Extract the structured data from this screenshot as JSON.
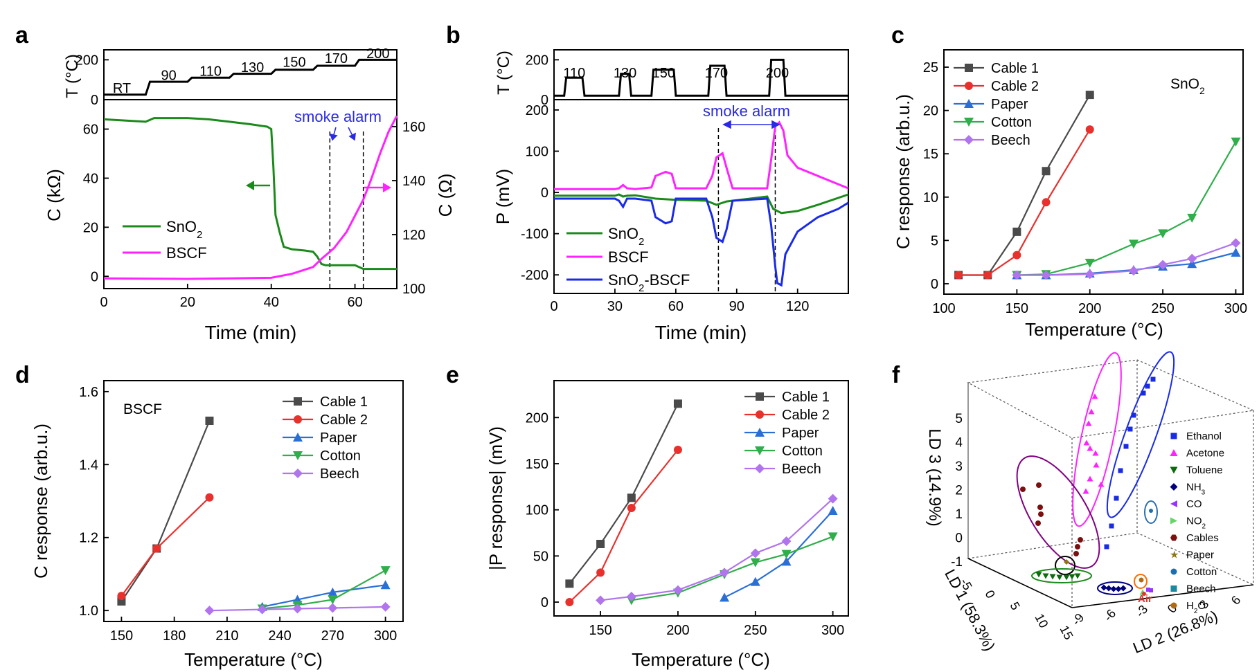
{
  "panel_letters": [
    "a",
    "b",
    "c",
    "d",
    "e",
    "f"
  ],
  "colors": {
    "green": "#1a8a1a",
    "magenta": "#ff22ff",
    "blue": "#1a2be6",
    "cable1": "#4a4a4a",
    "cable2": "#e8302c",
    "paper": "#2a6fd6",
    "cotton": "#2fae4a",
    "beech": "#b074ec",
    "annot": "#2a2ae6"
  },
  "chart_data": [
    {
      "panel": "a",
      "type": "line",
      "top": {
        "ylabel": "T (°C)",
        "yticks": [
          0,
          200
        ],
        "ylim": [
          0,
          250
        ],
        "x": [
          0,
          10,
          11,
          20,
          21,
          30,
          31,
          40,
          41,
          50,
          51,
          60,
          61,
          70
        ],
        "y": [
          25,
          25,
          90,
          90,
          110,
          110,
          130,
          130,
          150,
          150,
          170,
          170,
          200,
          200
        ],
        "step_labels": [
          "RT",
          "90",
          "110",
          "130",
          "150",
          "170",
          "200"
        ],
        "step_x": [
          4.3,
          15.5,
          25.5,
          35.5,
          45.5,
          55.5,
          65.5
        ],
        "step_y": [
          55,
          120,
          140,
          160,
          185,
          205,
          230
        ]
      },
      "xlabel": "Time (min)",
      "xlim": [
        0,
        70
      ],
      "xticks": [
        0,
        20,
        40,
        60
      ],
      "ylabel_left": "C (kΩ)",
      "ylim_left": [
        -5,
        72
      ],
      "yticks_left": [
        0,
        20,
        40,
        60
      ],
      "ylabel_right": "C (Ω)",
      "ylim_right": [
        100,
        170
      ],
      "yticks_right": [
        100,
        120,
        140,
        160
      ],
      "annotation": "smoke alarm",
      "alarm_x": [
        54,
        62
      ],
      "series": [
        {
          "name": "SnO2",
          "axis": "left",
          "x": [
            0,
            5,
            10,
            12,
            20,
            25,
            30,
            35,
            39,
            40,
            40.5,
            41,
            42,
            43,
            45,
            48,
            50,
            51,
            52,
            53,
            55,
            60,
            62,
            65,
            70
          ],
          "y": [
            64,
            63.5,
            63,
            64.5,
            64.5,
            64,
            63,
            62,
            61,
            60,
            45,
            25,
            18,
            12,
            11,
            10.5,
            10,
            8,
            5,
            4.5,
            4.5,
            4.5,
            3,
            3,
            3
          ]
        },
        {
          "name": "BSCF",
          "axis": "right",
          "x": [
            0,
            10,
            20,
            30,
            40,
            45,
            48,
            50,
            52,
            55,
            58,
            60,
            62,
            64,
            66,
            68,
            70
          ],
          "y": [
            103.8,
            103.7,
            103.6,
            103.8,
            104,
            105.5,
            107,
            108,
            111,
            115,
            121,
            127,
            133,
            141,
            150,
            158,
            164
          ]
        }
      ],
      "legend": [
        "SnO",
        "BSCF"
      ]
    },
    {
      "panel": "b",
      "type": "line",
      "top": {
        "ylabel": "T (°C)",
        "yticks": [
          0,
          200
        ],
        "ylim": [
          0,
          250
        ],
        "x": [
          0,
          5,
          6,
          14,
          15,
          32,
          33,
          37,
          38,
          48,
          49,
          59,
          60,
          76,
          77,
          84,
          85,
          106,
          107,
          113,
          114,
          145
        ],
        "y": [
          20,
          20,
          110,
          110,
          20,
          20,
          130,
          130,
          20,
          20,
          150,
          150,
          20,
          20,
          170,
          170,
          20,
          20,
          200,
          200,
          20,
          20
        ],
        "step_labels": [
          "110",
          "130",
          "150",
          "170",
          "200"
        ],
        "step_x": [
          10,
          35,
          54,
          80,
          110
        ]
      },
      "xlabel": "Time (min)",
      "xlim": [
        0,
        145
      ],
      "xticks": [
        0,
        30,
        60,
        90,
        120
      ],
      "ylabel_left": "P (mV)",
      "ylim_left": [
        -245,
        225
      ],
      "yticks_left": [
        -200,
        -100,
        0,
        100,
        200
      ],
      "annotation": "smoke alarm",
      "alarm_x": [
        81,
        109
      ],
      "series": [
        {
          "name": "SnO2",
          "x": [
            0,
            30,
            32,
            34,
            36,
            40,
            50,
            60,
            75,
            80,
            85,
            105,
            108,
            112,
            120,
            130,
            145
          ],
          "y": [
            -8,
            -8,
            -5,
            -10,
            -8,
            -7,
            -15,
            -18,
            -20,
            -30,
            -22,
            -10,
            -40,
            -50,
            -45,
            -30,
            -5
          ]
        },
        {
          "name": "BSCF",
          "x": [
            0,
            30,
            32,
            34,
            36,
            40,
            48,
            50,
            55,
            58,
            60,
            75,
            78,
            80,
            83,
            85,
            88,
            105,
            107,
            109,
            111,
            113,
            115,
            120,
            130,
            140,
            145
          ],
          "y": [
            8,
            8,
            10,
            18,
            10,
            8,
            12,
            40,
            50,
            45,
            10,
            10,
            40,
            85,
            95,
            60,
            10,
            10,
            80,
            160,
            170,
            150,
            90,
            60,
            40,
            20,
            10
          ]
        },
        {
          "name": "SnO2-BSCF",
          "x": [
            0,
            30,
            32,
            34,
            36,
            40,
            48,
            50,
            55,
            58,
            60,
            75,
            78,
            80,
            83,
            85,
            88,
            105,
            107,
            109,
            110,
            112,
            114,
            120,
            130,
            140,
            145
          ],
          "y": [
            -15,
            -15,
            -20,
            -35,
            -15,
            -15,
            -20,
            -60,
            -75,
            -70,
            -15,
            -15,
            -60,
            -110,
            -120,
            -90,
            -20,
            -15,
            -80,
            -180,
            -220,
            -225,
            -150,
            -95,
            -60,
            -40,
            -25
          ]
        }
      ],
      "legend": [
        "SnO",
        "BSCF",
        "SnO",
        "-BSCF"
      ]
    },
    {
      "panel": "c",
      "type": "line",
      "xlabel": "Temperature (°C)",
      "ylabel": "C response (arb.u.)",
      "xlim": [
        100,
        305
      ],
      "ylim": [
        -1.2,
        27
      ],
      "xticks": [
        100,
        150,
        200,
        250,
        300
      ],
      "yticks": [
        0,
        5,
        10,
        15,
        20,
        25
      ],
      "inner_label": "SnO",
      "series": [
        {
          "name": "Cable 1",
          "x": [
            110,
            130,
            150,
            170,
            200
          ],
          "y": [
            1,
            1,
            6,
            13,
            21.8
          ]
        },
        {
          "name": "Cable 2",
          "x": [
            110,
            130,
            150,
            170,
            200
          ],
          "y": [
            1,
            1,
            3.3,
            9.4,
            17.8
          ]
        },
        {
          "name": "Paper",
          "x": [
            150,
            170,
            200,
            230,
            250,
            270,
            300
          ],
          "y": [
            1,
            1,
            1.2,
            1.6,
            2,
            2.3,
            3.6
          ]
        },
        {
          "name": "Cotton",
          "x": [
            150,
            170,
            200,
            230,
            250,
            270,
            300
          ],
          "y": [
            1,
            1.1,
            2.4,
            4.6,
            5.8,
            7.6,
            16.4
          ]
        },
        {
          "name": "Beech",
          "x": [
            150,
            170,
            200,
            230,
            250,
            270,
            300
          ],
          "y": [
            1,
            1,
            1.1,
            1.5,
            2.2,
            2.9,
            4.7
          ]
        }
      ]
    },
    {
      "panel": "d",
      "type": "line",
      "xlabel": "Temperature (°C)",
      "ylabel": "C response (arb.u.)",
      "xlim": [
        140,
        310
      ],
      "ylim": [
        0.97,
        1.63
      ],
      "xticks": [
        150,
        180,
        210,
        240,
        270,
        300
      ],
      "yticks": [
        1.0,
        1.2,
        1.4,
        1.6
      ],
      "inner_label": "BSCF",
      "series": [
        {
          "name": "Cable 1",
          "x": [
            150,
            170,
            200
          ],
          "y": [
            1.025,
            1.17,
            1.52
          ]
        },
        {
          "name": "Cable 2",
          "x": [
            150,
            170,
            200
          ],
          "y": [
            1.04,
            1.17,
            1.31
          ]
        },
        {
          "name": "Paper",
          "x": [
            230,
            250,
            270,
            300
          ],
          "y": [
            1.01,
            1.03,
            1.05,
            1.07
          ]
        },
        {
          "name": "Cotton",
          "x": [
            230,
            250,
            270,
            300
          ],
          "y": [
            1.005,
            1.015,
            1.03,
            1.11
          ]
        },
        {
          "name": "Beech",
          "x": [
            200,
            230,
            250,
            270,
            300
          ],
          "y": [
            1.0,
            1.003,
            1.005,
            1.007,
            1.01
          ]
        }
      ]
    },
    {
      "panel": "e",
      "type": "line",
      "xlabel": "Temperature (°C)",
      "ylabel": "|P response| (mV)",
      "xlim": [
        120,
        310
      ],
      "ylim": [
        -15,
        240
      ],
      "xticks": [
        150,
        200,
        250,
        300
      ],
      "yticks": [
        0,
        50,
        100,
        150,
        200
      ],
      "series": [
        {
          "name": "Cable 1",
          "x": [
            130,
            150,
            170,
            200
          ],
          "y": [
            20,
            63,
            113,
            215
          ]
        },
        {
          "name": "Cable 2",
          "x": [
            130,
            150,
            170,
            200
          ],
          "y": [
            0,
            32,
            102,
            165
          ]
        },
        {
          "name": "Paper",
          "x": [
            230,
            250,
            270,
            300
          ],
          "y": [
            5,
            22,
            44,
            99
          ]
        },
        {
          "name": "Cotton",
          "x": [
            170,
            200,
            230,
            250,
            270,
            300
          ],
          "y": [
            2,
            10,
            30,
            43,
            52,
            71
          ]
        },
        {
          "name": "Beech",
          "x": [
            150,
            170,
            200,
            230,
            250,
            270,
            300
          ],
          "y": [
            2,
            6,
            13,
            32,
            53,
            66,
            112
          ]
        }
      ]
    },
    {
      "panel": "f",
      "type": "scatter",
      "zlabel": "LD 3 (14.9%)",
      "xlabel": "LD 1 (58.3%)",
      "ylabel": "LD 2 (26.8%)",
      "zticks": [
        "-1",
        "0",
        "1",
        "2",
        "3",
        "4",
        "5"
      ],
      "xticks": [
        "-5",
        "0",
        "5",
        "10",
        "15"
      ],
      "yticks": [
        "-9",
        "-6",
        "-3",
        "0",
        "3",
        "6"
      ],
      "annotation": "Air",
      "legend": [
        "Ethanol",
        "Acetone",
        "Toluene",
        "NH",
        "CO",
        "NO",
        "Cables",
        "Paper",
        "Cotton",
        "Beech",
        "H"
      ]
    }
  ]
}
